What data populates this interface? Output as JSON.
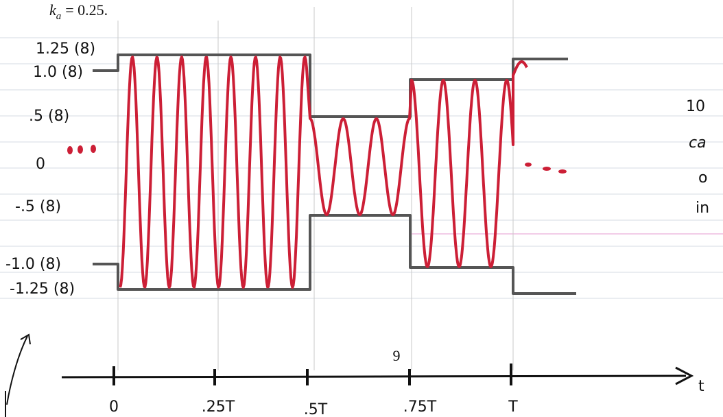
{
  "header": {
    "symbol": "k",
    "subscript": "a",
    "value": "= 0.25."
  },
  "y_labels": [
    "1.25 (8)",
    "1.0 (8)",
    ".5 (8)",
    "0",
    "-.5 (8)",
    "-1.0 (8)",
    "-1.25 (8)"
  ],
  "x_labels": [
    "0",
    ".25T",
    ".5T",
    ".75T",
    "T"
  ],
  "axis_label": "t",
  "page_number": "9",
  "margin_note": [
    "10",
    "ca",
    "o",
    "in"
  ]
}
